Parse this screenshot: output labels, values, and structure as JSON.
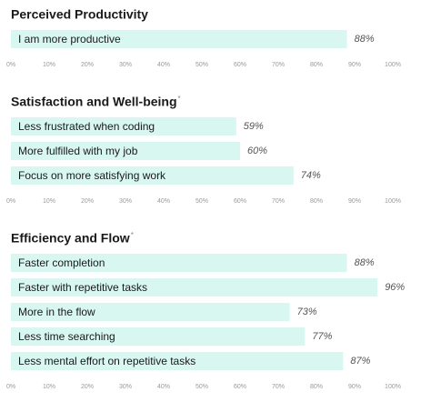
{
  "chart_data": [
    {
      "type": "hbar",
      "title": "Perceived Productivity",
      "color": "#d8f7f1",
      "categories": [
        "I am more productive"
      ],
      "values": [
        88
      ],
      "value_labels": [
        "88%"
      ],
      "xlim": [
        0,
        100
      ],
      "xticks": [
        {
          "value": 0,
          "label": "0%"
        },
        {
          "value": 10,
          "label": "10%"
        },
        {
          "value": 20,
          "label": "20%"
        },
        {
          "value": 30,
          "label": "30%"
        },
        {
          "value": 40,
          "label": "40%"
        },
        {
          "value": 50,
          "label": "50%"
        },
        {
          "value": 60,
          "label": "60%"
        },
        {
          "value": 70,
          "label": "70%"
        },
        {
          "value": 80,
          "label": "80%"
        },
        {
          "value": 90,
          "label": "90%"
        },
        {
          "value": 100,
          "label": "100%"
        }
      ]
    },
    {
      "type": "hbar",
      "title": "Satisfaction and Well-being",
      "title_mark": "*",
      "color": "#d8f7f1",
      "categories": [
        "Less frustrated when coding",
        "More fulfilled with my job",
        "Focus on more satisfying work"
      ],
      "values": [
        59,
        60,
        74
      ],
      "value_labels": [
        "59%",
        "60%",
        "74%"
      ],
      "xlim": [
        0,
        100
      ],
      "xticks": [
        {
          "value": 0,
          "label": "0%"
        },
        {
          "value": 10,
          "label": "10%"
        },
        {
          "value": 20,
          "label": "20%"
        },
        {
          "value": 30,
          "label": "30%"
        },
        {
          "value": 40,
          "label": "40%"
        },
        {
          "value": 50,
          "label": "50%"
        },
        {
          "value": 60,
          "label": "60%"
        },
        {
          "value": 70,
          "label": "70%"
        },
        {
          "value": 80,
          "label": "80%"
        },
        {
          "value": 90,
          "label": "90%"
        },
        {
          "value": 100,
          "label": "100%"
        }
      ]
    },
    {
      "type": "hbar",
      "title": "Efficiency and Flow",
      "title_mark": "*",
      "color": "#d8f7f1",
      "categories": [
        "Faster completion",
        "Faster with repetitive tasks",
        "More in the flow",
        "Less time searching",
        "Less mental effort on repetitive tasks"
      ],
      "values": [
        88,
        96,
        73,
        77,
        87
      ],
      "value_labels": [
        "88%",
        "96%",
        "73%",
        "77%",
        "87%"
      ],
      "xlim": [
        0,
        100
      ],
      "xticks": [
        {
          "value": 0,
          "label": "0%"
        },
        {
          "value": 10,
          "label": "10%"
        },
        {
          "value": 20,
          "label": "20%"
        },
        {
          "value": 30,
          "label": "30%"
        },
        {
          "value": 40,
          "label": "40%"
        },
        {
          "value": 50,
          "label": "50%"
        },
        {
          "value": 60,
          "label": "60%"
        },
        {
          "value": 70,
          "label": "70%"
        },
        {
          "value": 80,
          "label": "80%"
        },
        {
          "value": 90,
          "label": "90%"
        },
        {
          "value": 100,
          "label": "100%"
        }
      ]
    }
  ]
}
